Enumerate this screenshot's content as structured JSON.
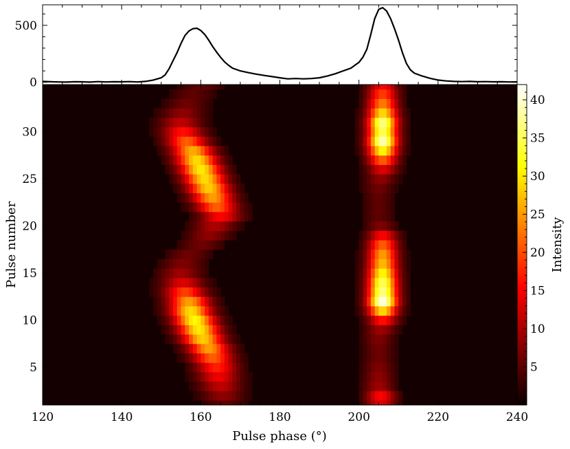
{
  "chart_data": [
    {
      "type": "line",
      "panel": "top",
      "xlim": [
        120,
        240
      ],
      "ylim": [
        -20,
        680
      ],
      "yticks": [
        0,
        500
      ],
      "grid": false,
      "series": [
        {
          "color": "#000000",
          "points": [
            [
              120,
              8
            ],
            [
              122,
              5
            ],
            [
              124,
              3
            ],
            [
              126,
              2
            ],
            [
              128,
              5
            ],
            [
              130,
              4
            ],
            [
              132,
              2
            ],
            [
              134,
              6
            ],
            [
              136,
              3
            ],
            [
              138,
              5
            ],
            [
              140,
              4
            ],
            [
              142,
              6
            ],
            [
              144,
              3
            ],
            [
              146,
              8
            ],
            [
              148,
              20
            ],
            [
              150,
              40
            ],
            [
              151,
              65
            ],
            [
              152,
              120
            ],
            [
              153,
              190
            ],
            [
              154,
              260
            ],
            [
              155,
              340
            ],
            [
              156,
              410
            ],
            [
              157,
              450
            ],
            [
              158,
              470
            ],
            [
              159,
              475
            ],
            [
              160,
              455
            ],
            [
              161,
              420
            ],
            [
              162,
              370
            ],
            [
              163,
              315
            ],
            [
              164,
              265
            ],
            [
              165,
              220
            ],
            [
              166,
              180
            ],
            [
              167,
              150
            ],
            [
              168,
              125
            ],
            [
              170,
              100
            ],
            [
              172,
              85
            ],
            [
              174,
              72
            ],
            [
              176,
              60
            ],
            [
              178,
              50
            ],
            [
              180,
              40
            ],
            [
              182,
              30
            ],
            [
              184,
              33
            ],
            [
              186,
              30
            ],
            [
              188,
              33
            ],
            [
              190,
              40
            ],
            [
              192,
              55
            ],
            [
              194,
              75
            ],
            [
              196,
              100
            ],
            [
              198,
              125
            ],
            [
              199,
              150
            ],
            [
              200,
              175
            ],
            [
              201,
              220
            ],
            [
              202,
              290
            ],
            [
              203,
              420
            ],
            [
              204,
              560
            ],
            [
              205,
              640
            ],
            [
              206,
              655
            ],
            [
              207,
              625
            ],
            [
              208,
              560
            ],
            [
              209,
              470
            ],
            [
              210,
              370
            ],
            [
              211,
              260
            ],
            [
              212,
              165
            ],
            [
              213,
              110
            ],
            [
              214,
              80
            ],
            [
              216,
              55
            ],
            [
              218,
              35
            ],
            [
              220,
              20
            ],
            [
              222,
              12
            ],
            [
              224,
              8
            ],
            [
              226,
              6
            ],
            [
              228,
              8
            ],
            [
              230,
              5
            ],
            [
              232,
              6
            ],
            [
              234,
              4
            ],
            [
              236,
              5
            ],
            [
              238,
              3
            ],
            [
              240,
              4
            ]
          ]
        }
      ]
    },
    {
      "type": "heatmap",
      "panel": "main",
      "colormap": "hot",
      "xlabel": "Pulse phase (°)",
      "ylabel": "Pulse number",
      "xlim": [
        120,
        240
      ],
      "ylim": [
        1,
        35
      ],
      "xticks": [
        120,
        140,
        160,
        180,
        200,
        220,
        240
      ],
      "yticks": [
        5,
        10,
        15,
        20,
        25,
        30
      ],
      "colorbar": {
        "label": "Intensity",
        "ticks": [
          5,
          10,
          15,
          20,
          25,
          30,
          35,
          40
        ],
        "range": [
          0,
          42
        ]
      },
      "component1": {
        "width_deg": 3.6,
        "rows": [
          {
            "pulse": 1,
            "phase": 166.0,
            "peak": 4
          },
          {
            "pulse": 2,
            "phase": 165.5,
            "peak": 7
          },
          {
            "pulse": 3,
            "phase": 165.0,
            "peak": 10
          },
          {
            "pulse": 4,
            "phase": 164.5,
            "peak": 13
          },
          {
            "pulse": 5,
            "phase": 164.0,
            "peak": 16
          },
          {
            "pulse": 6,
            "phase": 163.0,
            "peak": 20
          },
          {
            "pulse": 7,
            "phase": 162.0,
            "peak": 24
          },
          {
            "pulse": 8,
            "phase": 160.5,
            "peak": 27
          },
          {
            "pulse": 9,
            "phase": 159.5,
            "peak": 29
          },
          {
            "pulse": 10,
            "phase": 158.5,
            "peak": 30
          },
          {
            "pulse": 11,
            "phase": 157.5,
            "peak": 28
          },
          {
            "pulse": 12,
            "phase": 157.0,
            "peak": 24
          },
          {
            "pulse": 13,
            "phase": 156.0,
            "peak": 18
          },
          {
            "pulse": 14,
            "phase": 155.5,
            "peak": 12
          },
          {
            "pulse": 15,
            "phase": 155.0,
            "peak": 8
          },
          {
            "pulse": 16,
            "phase": 155.5,
            "peak": 6
          },
          {
            "pulse": 17,
            "phase": 157.0,
            "peak": 5
          },
          {
            "pulse": 18,
            "phase": 160.0,
            "peak": 5
          },
          {
            "pulse": 19,
            "phase": 162.0,
            "peak": 7
          },
          {
            "pulse": 20,
            "phase": 163.5,
            "peak": 9
          },
          {
            "pulse": 21,
            "phase": 165.0,
            "peak": 14
          },
          {
            "pulse": 22,
            "phase": 164.0,
            "peak": 20
          },
          {
            "pulse": 23,
            "phase": 163.0,
            "peak": 24
          },
          {
            "pulse": 24,
            "phase": 162.0,
            "peak": 27
          },
          {
            "pulse": 25,
            "phase": 161.0,
            "peak": 28
          },
          {
            "pulse": 26,
            "phase": 160.0,
            "peak": 29
          },
          {
            "pulse": 27,
            "phase": 159.0,
            "peak": 28
          },
          {
            "pulse": 28,
            "phase": 158.0,
            "peak": 25
          },
          {
            "pulse": 29,
            "phase": 156.5,
            "peak": 20
          },
          {
            "pulse": 30,
            "phase": 155.5,
            "peak": 15
          },
          {
            "pulse": 31,
            "phase": 155.0,
            "peak": 10
          },
          {
            "pulse": 32,
            "phase": 155.5,
            "peak": 7
          },
          {
            "pulse": 33,
            "phase": 156.5,
            "peak": 5
          },
          {
            "pulse": 34,
            "phase": 158.0,
            "peak": 4
          },
          {
            "pulse": 35,
            "phase": 160.0,
            "peak": 4
          }
        ]
      },
      "component2": {
        "width_deg": 2.6,
        "rows": [
          {
            "pulse": 1,
            "phase": 205.5,
            "peak": 12
          },
          {
            "pulse": 2,
            "phase": 205.5,
            "peak": 14
          },
          {
            "pulse": 3,
            "phase": 205.0,
            "peak": 8
          },
          {
            "pulse": 4,
            "phase": 205.0,
            "peak": 7
          },
          {
            "pulse": 5,
            "phase": 205.0,
            "peak": 6
          },
          {
            "pulse": 6,
            "phase": 205.0,
            "peak": 5
          },
          {
            "pulse": 7,
            "phase": 205.0,
            "peak": 5
          },
          {
            "pulse": 8,
            "phase": 205.0,
            "peak": 6
          },
          {
            "pulse": 9,
            "phase": 205.5,
            "peak": 8
          },
          {
            "pulse": 10,
            "phase": 206.0,
            "peak": 15
          },
          {
            "pulse": 11,
            "phase": 206.0,
            "peak": 28
          },
          {
            "pulse": 12,
            "phase": 206.0,
            "peak": 40
          },
          {
            "pulse": 13,
            "phase": 206.0,
            "peak": 36
          },
          {
            "pulse": 14,
            "phase": 206.0,
            "peak": 34
          },
          {
            "pulse": 15,
            "phase": 206.0,
            "peak": 30
          },
          {
            "pulse": 16,
            "phase": 206.0,
            "peak": 26
          },
          {
            "pulse": 17,
            "phase": 206.0,
            "peak": 24
          },
          {
            "pulse": 18,
            "phase": 206.0,
            "peak": 20
          },
          {
            "pulse": 19,
            "phase": 206.0,
            "peak": 14
          },
          {
            "pulse": 20,
            "phase": 205.5,
            "peak": 6
          },
          {
            "pulse": 21,
            "phase": 205.0,
            "peak": 4
          },
          {
            "pulse": 22,
            "phase": 205.0,
            "peak": 4
          },
          {
            "pulse": 23,
            "phase": 205.0,
            "peak": 4
          },
          {
            "pulse": 24,
            "phase": 205.0,
            "peak": 5
          },
          {
            "pulse": 25,
            "phase": 205.5,
            "peak": 7
          },
          {
            "pulse": 26,
            "phase": 206.0,
            "peak": 12
          },
          {
            "pulse": 27,
            "phase": 206.0,
            "peak": 20
          },
          {
            "pulse": 28,
            "phase": 206.0,
            "peak": 30
          },
          {
            "pulse": 29,
            "phase": 206.0,
            "peak": 38
          },
          {
            "pulse": 30,
            "phase": 206.0,
            "peak": 34
          },
          {
            "pulse": 31,
            "phase": 206.0,
            "peak": 36
          },
          {
            "pulse": 32,
            "phase": 206.0,
            "peak": 28
          },
          {
            "pulse": 33,
            "phase": 206.0,
            "peak": 22
          },
          {
            "pulse": 34,
            "phase": 206.0,
            "peak": 18
          },
          {
            "pulse": 35,
            "phase": 206.0,
            "peak": 14
          }
        ]
      },
      "background_level": 1.2
    }
  ]
}
